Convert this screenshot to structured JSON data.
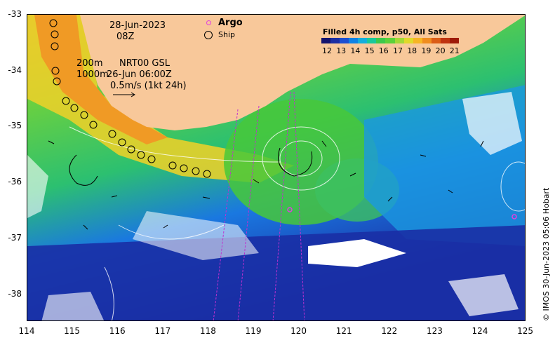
{
  "map": {
    "date": "28-Jun-2023",
    "hour": "08Z",
    "depth_200": "200m",
    "depth_1000": "1000m",
    "product": "NRT00 GSL",
    "analysis_time": "26-Jun 06:00Z",
    "vector_scale": "0.5m/s (1kt 24h)",
    "legend": {
      "argo": "Argo",
      "ship": "Ship"
    },
    "colorbar_title": "Filled 4h comp, p50, All Sats",
    "colorbar_labels": [
      "12",
      "13",
      "14",
      "15",
      "16",
      "17",
      "18",
      "19",
      "20",
      "21"
    ],
    "colorbar_colors": [
      "#14136e",
      "#1c2ea3",
      "#1d4fd2",
      "#0d82e6",
      "#14aedc",
      "#19c89b",
      "#3cc94b",
      "#5cd13a",
      "#a2d936",
      "#e0d92a",
      "#f7b523",
      "#f08c1e",
      "#db5c16",
      "#bf3410",
      "#9e1a08"
    ],
    "x_ticks": [
      "114",
      "115",
      "116",
      "117",
      "118",
      "119",
      "120",
      "121",
      "122",
      "123",
      "124",
      "125"
    ],
    "y_ticks": [
      "-33",
      "-34",
      "-35",
      "-36",
      "-37",
      "-38"
    ],
    "credit": "© IMOS 30-Jun-2023 05:06 Hobart",
    "colors": {
      "land": "#f8c89a",
      "argo": "#e040e0",
      "track": "#c030d0"
    }
  }
}
